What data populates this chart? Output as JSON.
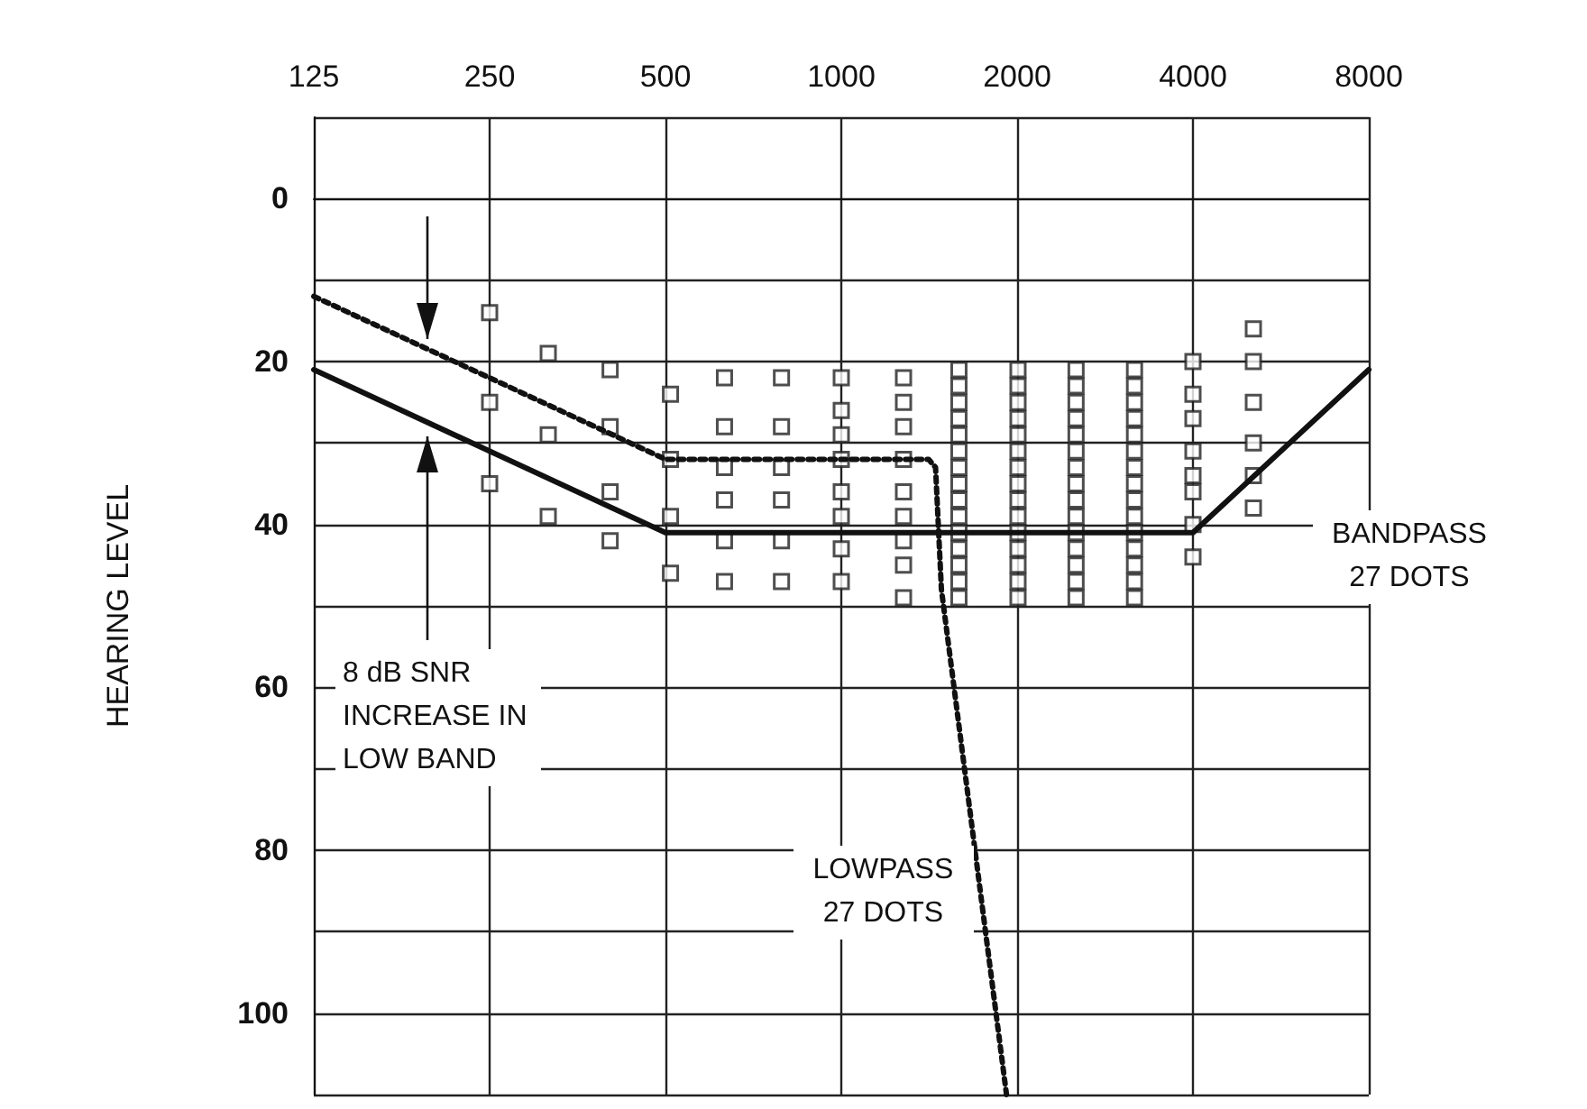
{
  "chart_data": {
    "type": "scatter",
    "ylabel": "HEARING LEVEL",
    "xlim": [
      125,
      8000
    ],
    "xticks": [
      125,
      250,
      500,
      1000,
      2000,
      4000,
      8000
    ],
    "log": "x",
    "ylim": [
      110,
      -10
    ],
    "yticks": [
      {
        "value": -10,
        "label": null
      },
      0,
      {
        "value": 10,
        "label": null
      },
      20,
      {
        "value": 30,
        "label": null
      },
      40,
      {
        "value": 50,
        "label": null
      },
      60,
      {
        "value": 70,
        "label": null
      },
      80,
      {
        "value": 90,
        "label": null
      },
      100,
      {
        "value": 110,
        "label": null
      }
    ],
    "grid": true,
    "legend": false,
    "annotations": [
      "8 dB SNR INCREASE IN LOW BAND"
    ],
    "series": [
      {
        "marker": "square",
        "color": "#222222",
        "x": [
          250,
          250,
          250,
          315,
          315,
          315,
          402,
          402,
          402,
          402,
          510,
          510,
          510,
          510,
          631,
          631,
          631,
          631,
          631,
          631,
          790,
          790,
          790,
          790,
          790,
          790,
          1000,
          1000,
          1000,
          1000,
          1000,
          1000,
          1000,
          1000,
          1278,
          1278,
          1278,
          1278,
          1278,
          1278,
          1278,
          1278,
          1278,
          1590,
          1590,
          1590,
          1590,
          1590,
          1590,
          1590,
          1590,
          1590,
          1590,
          1590,
          1590,
          1590,
          1590,
          1590,
          2007,
          2007,
          2007,
          2007,
          2007,
          2007,
          2007,
          2007,
          2007,
          2007,
          2007,
          2007,
          2007,
          2007,
          2007,
          2523,
          2523,
          2523,
          2523,
          2523,
          2523,
          2523,
          2523,
          2523,
          2523,
          2523,
          2523,
          2523,
          2523,
          2523,
          3177,
          3177,
          3177,
          3177,
          3177,
          3177,
          3177,
          3177,
          3177,
          3177,
          3177,
          3177,
          3177,
          3177,
          3177,
          4000,
          4000,
          4000,
          4000,
          4000,
          4000,
          4000,
          4000,
          5076,
          5076,
          5076,
          5076,
          5076,
          5076
        ],
        "values": [
          14,
          25,
          35,
          19,
          29,
          39,
          21,
          28,
          36,
          42,
          24,
          32,
          39,
          46,
          22,
          28,
          33,
          37,
          42,
          47,
          22,
          28,
          33,
          37,
          42,
          47,
          22,
          26,
          29,
          32,
          36,
          39,
          43,
          47,
          22,
          25,
          28,
          32,
          36,
          39,
          42,
          45,
          49,
          21,
          23,
          25,
          27,
          29,
          31,
          33,
          35,
          37,
          39,
          41,
          43,
          45,
          47,
          49,
          21,
          23,
          25,
          27,
          29,
          31,
          33,
          35,
          37,
          39,
          41,
          43,
          45,
          47,
          49,
          21,
          23,
          25,
          27,
          29,
          31,
          33,
          35,
          37,
          39,
          41,
          43,
          45,
          47,
          49,
          21,
          23,
          25,
          27,
          29,
          31,
          33,
          35,
          37,
          39,
          41,
          43,
          45,
          47,
          49,
          20,
          24,
          27,
          31,
          34,
          36,
          40,
          44,
          16,
          20,
          25,
          30,
          34,
          38
        ]
      },
      {
        "type": "line",
        "name": "BANDPASS 27 DOTS",
        "color": "#111111",
        "line_style": "solid",
        "marker": "none",
        "x": [
          125,
          500,
          4000,
          8000
        ],
        "values": [
          21,
          41,
          41,
          21
        ]
      },
      {
        "type": "line",
        "name": "LOWPASS 27 DOTS",
        "color": "#111111",
        "line_style": "dotted",
        "marker": "none",
        "x": [
          125,
          500,
          1411,
          1450,
          1484,
          1918
        ],
        "values": [
          12,
          32,
          32,
          33,
          48,
          110
        ]
      }
    ]
  }
}
